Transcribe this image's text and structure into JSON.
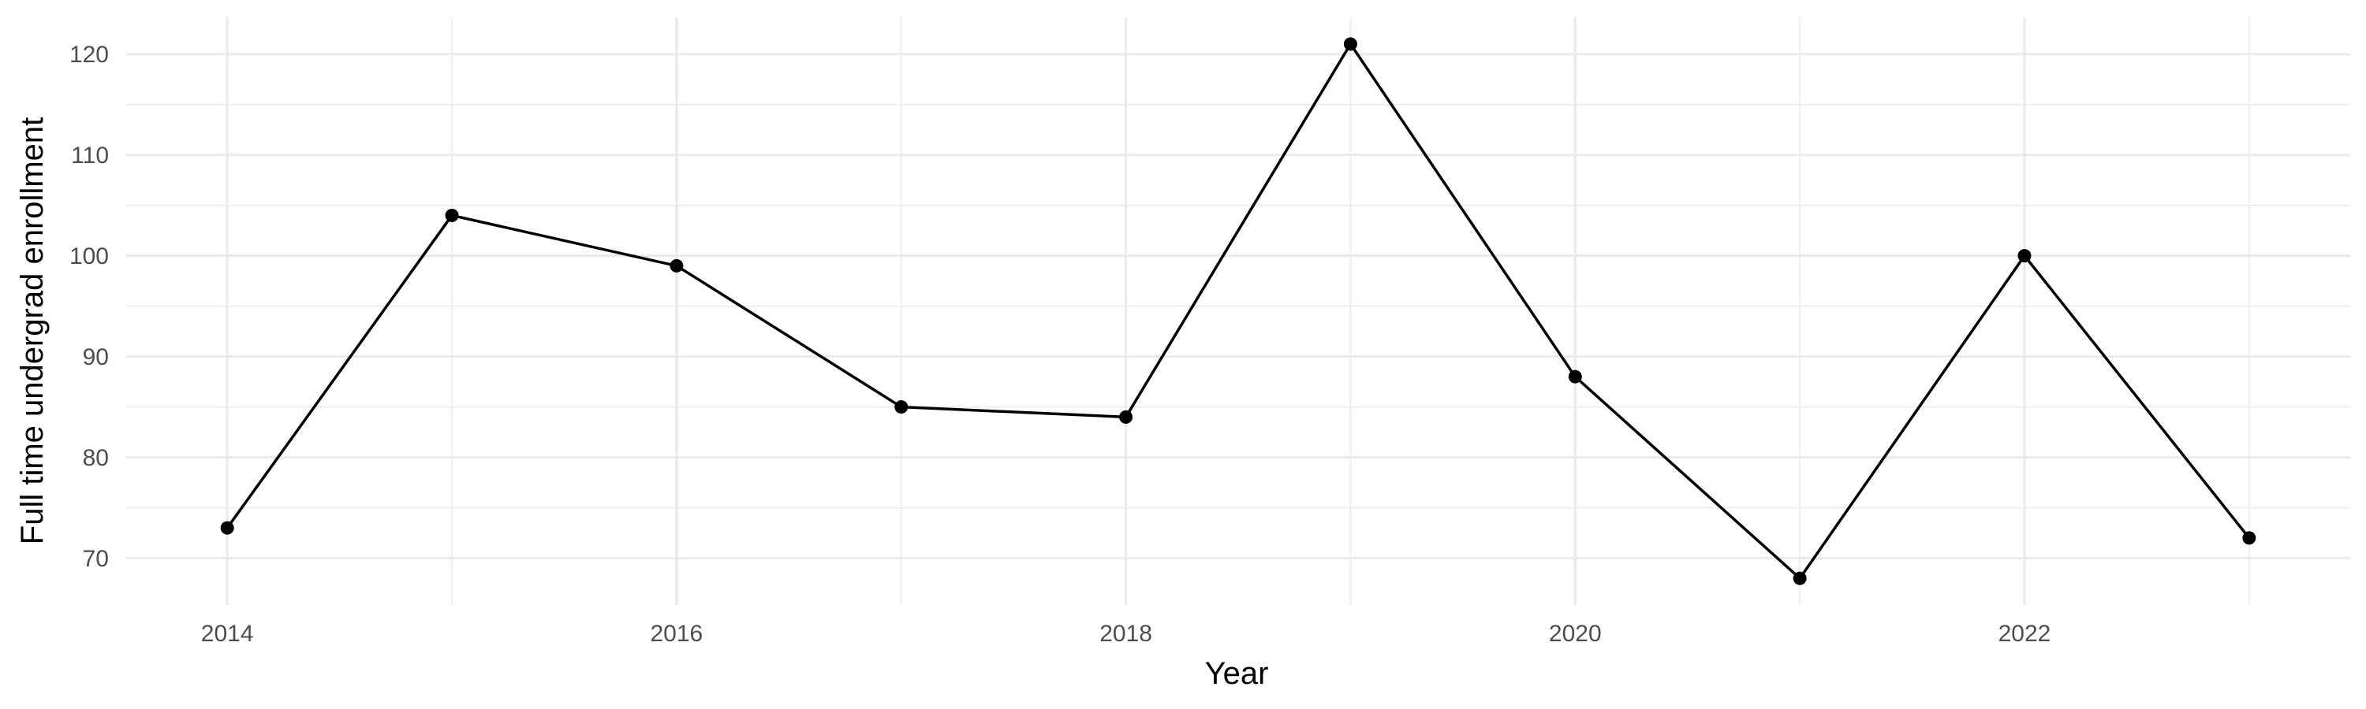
{
  "chart_data": {
    "type": "line",
    "title": "",
    "xlabel": "Year",
    "ylabel": "Full time undergrad enrollment",
    "x": [
      2014,
      2015,
      2016,
      2017,
      2018,
      2019,
      2020,
      2021,
      2022,
      2023
    ],
    "series": [
      {
        "values": [
          73,
          104,
          99,
          85,
          84,
          121,
          88,
          68,
          100,
          72
        ]
      }
    ],
    "xlim": [
      2013.55,
      2023.45
    ],
    "ylim": [
      65.35,
      123.65
    ],
    "x_ticks": [
      2014,
      2016,
      2018,
      2020,
      2022
    ],
    "x_tick_labels": [
      "2014",
      "2016",
      "2018",
      "2020",
      "2022"
    ],
    "y_ticks": [
      70,
      80,
      90,
      100,
      110,
      120
    ],
    "y_tick_labels": [
      "70",
      "80",
      "90",
      "100",
      "110",
      "120"
    ],
    "grid": true,
    "legend": "none",
    "colors": {
      "line": "#000000",
      "points": "#000000",
      "grid": "#ebebeb",
      "tick_text": "#4d4d4d",
      "background": "#ffffff"
    }
  }
}
